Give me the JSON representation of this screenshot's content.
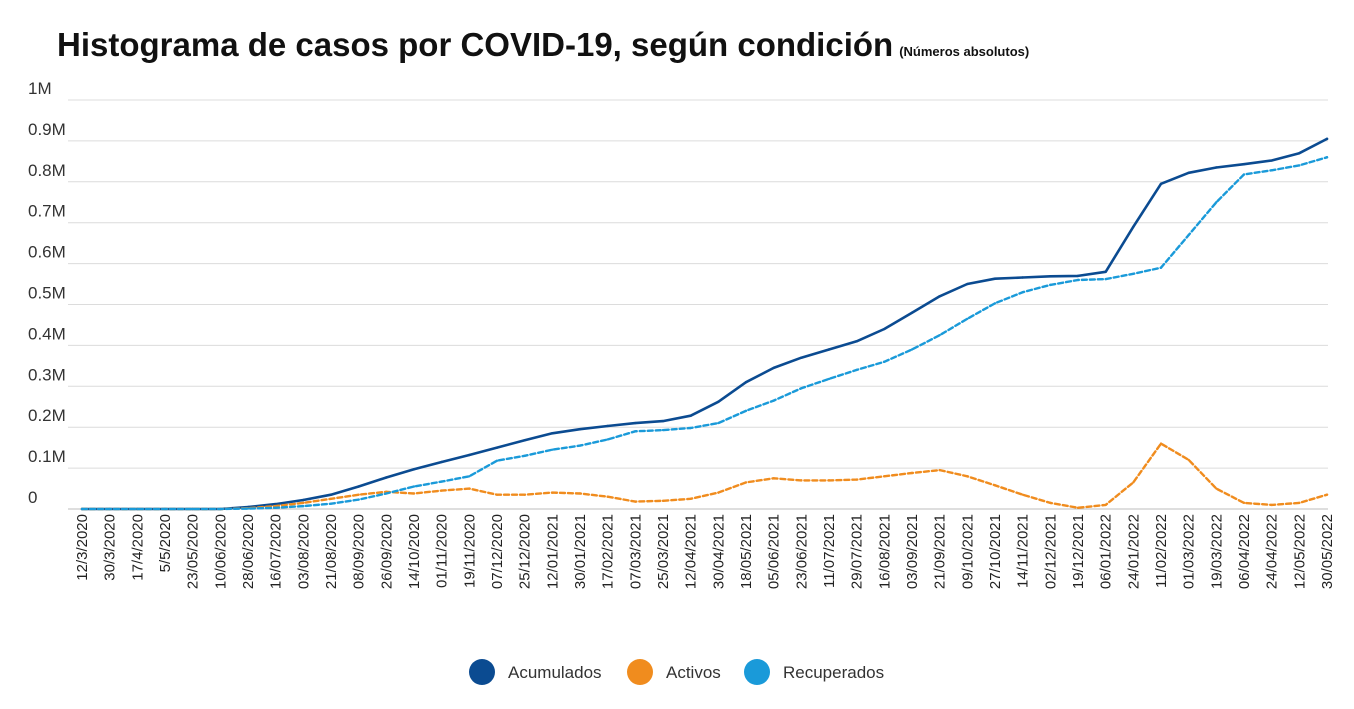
{
  "chart_data": {
    "type": "line",
    "title": "Histograma de casos por COVID-19, según condición",
    "subtitle": "(Números absolutos)",
    "ylim": [
      0,
      1000000
    ],
    "y_ticks": [
      {
        "value": 0,
        "label": "0"
      },
      {
        "value": 100000,
        "label": "0.1M"
      },
      {
        "value": 200000,
        "label": "0.2M"
      },
      {
        "value": 300000,
        "label": "0.3M"
      },
      {
        "value": 400000,
        "label": "0.4M"
      },
      {
        "value": 500000,
        "label": "0.5M"
      },
      {
        "value": 600000,
        "label": "0.6M"
      },
      {
        "value": 700000,
        "label": "0.7M"
      },
      {
        "value": 800000,
        "label": "0.8M"
      },
      {
        "value": 900000,
        "label": "0.9M"
      },
      {
        "value": 1000000,
        "label": "1M"
      }
    ],
    "grid": true,
    "legend_position": "bottom",
    "categories": [
      "12/3/2020",
      "30/3/2020",
      "17/4/2020",
      "5/5/2020",
      "23/05/2020",
      "10/06/2020",
      "28/06/2020",
      "16/07/2020",
      "03/08/2020",
      "21/08/2020",
      "08/09/2020",
      "26/09/2020",
      "14/10/2020",
      "01/11/2020",
      "19/11/2020",
      "07/12/2020",
      "25/12/2020",
      "12/01/2021",
      "30/01/2021",
      "17/02/2021",
      "07/03/2021",
      "25/03/2021",
      "12/04/2021",
      "30/04/2021",
      "18/05/2021",
      "05/06/2021",
      "23/06/2021",
      "11/07/2021",
      "29/07/2021",
      "16/08/2021",
      "03/09/2021",
      "21/09/2021",
      "09/10/2021",
      "27/10/2021",
      "14/11/2021",
      "02/12/2021",
      "19/12/2021",
      "06/01/2022",
      "24/01/2022",
      "11/02/2022",
      "01/03/2022",
      "19/03/2022",
      "06/04/2022",
      "24/04/2022",
      "12/05/2022",
      "30/05/2022"
    ],
    "series": [
      {
        "name": "Acumulados",
        "color": "#0b4b91",
        "dashed": false,
        "values": [
          0,
          0,
          0,
          0,
          0,
          0,
          5000,
          12000,
          22000,
          35000,
          55000,
          77000,
          97000,
          115000,
          132000,
          150000,
          168000,
          185000,
          195000,
          203000,
          210000,
          215000,
          228000,
          262000,
          310000,
          345000,
          370000,
          390000,
          410000,
          440000,
          480000,
          520000,
          550000,
          563000,
          566000,
          569000,
          570000,
          580000,
          690000,
          795000,
          822000,
          835000,
          843000,
          852000,
          870000,
          905000
        ]
      },
      {
        "name": "Activos",
        "color": "#f08c1e",
        "dashed": true,
        "values": [
          0,
          0,
          0,
          0,
          0,
          0,
          2000,
          7000,
          15000,
          25000,
          35000,
          42000,
          38000,
          45000,
          50000,
          35000,
          35000,
          40000,
          38000,
          30000,
          18000,
          20000,
          25000,
          40000,
          65000,
          75000,
          70000,
          70000,
          72000,
          80000,
          88000,
          95000,
          80000,
          58000,
          35000,
          15000,
          3000,
          10000,
          65000,
          160000,
          120000,
          50000,
          15000,
          10000,
          15000,
          35000
        ]
      },
      {
        "name": "Recuperados",
        "color": "#1a9ad9",
        "dashed": true,
        "values": [
          0,
          0,
          0,
          0,
          0,
          0,
          1000,
          3000,
          7000,
          13000,
          23000,
          38000,
          55000,
          67000,
          80000,
          118000,
          130000,
          145000,
          155000,
          170000,
          190000,
          193000,
          198000,
          210000,
          240000,
          265000,
          295000,
          318000,
          340000,
          360000,
          390000,
          425000,
          465000,
          503000,
          530000,
          548000,
          560000,
          562000,
          575000,
          590000,
          670000,
          750000,
          818000,
          828000,
          840000,
          860000
        ]
      }
    ]
  }
}
